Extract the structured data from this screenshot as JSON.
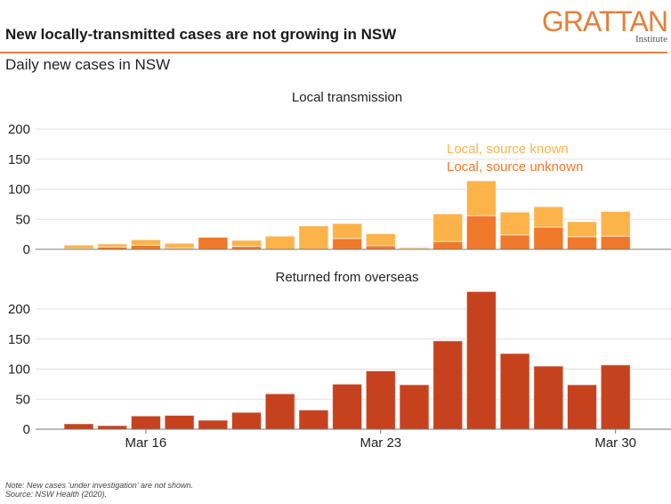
{
  "header": {
    "title": "New locally-transmitted cases are not growing in NSW",
    "subtitle": "Daily new cases in NSW",
    "logo_main": "GRATTAN",
    "logo_sub": "Institute"
  },
  "colors": {
    "accent": "#e67e3a",
    "local_known": "#fbb34a",
    "local_unknown": "#f0782a",
    "overseas": "#c6421f",
    "grid": "#e0e0e0",
    "axis": "#777777"
  },
  "footer": {
    "note": "Note: New cases 'under investigation' are not shown.",
    "source": "Source: NSW Health (2020)."
  },
  "chart_data": [
    {
      "type": "bar",
      "stacked": true,
      "title": "Local transmission",
      "categories": [
        "Mar 14",
        "Mar 15",
        "Mar 16",
        "Mar 17",
        "Mar 18",
        "Mar 19",
        "Mar 20",
        "Mar 21",
        "Mar 22",
        "Mar 23",
        "Mar 24",
        "Mar 25",
        "Mar 26",
        "Mar 27",
        "Mar 28",
        "Mar 29",
        "Mar 30"
      ],
      "series": [
        {
          "name": "Local, source unknown",
          "values": [
            1,
            4,
            7,
            2,
            20,
            5,
            0,
            0,
            18,
            6,
            1,
            13,
            56,
            24,
            37,
            21,
            22
          ]
        },
        {
          "name": "Local, source known",
          "values": [
            6,
            5,
            9,
            8,
            0,
            10,
            22,
            39,
            25,
            20,
            2,
            46,
            58,
            38,
            34,
            25,
            41
          ]
        }
      ],
      "yticks": [
        0,
        50,
        100,
        150,
        200
      ],
      "ylim": [
        0,
        200
      ],
      "xlabel": "",
      "ylabel": "",
      "grid": true,
      "legend": "top-right"
    },
    {
      "type": "bar",
      "title": "Returned from overseas",
      "categories": [
        "Mar 14",
        "Mar 15",
        "Mar 16",
        "Mar 17",
        "Mar 18",
        "Mar 19",
        "Mar 20",
        "Mar 21",
        "Mar 22",
        "Mar 23",
        "Mar 24",
        "Mar 25",
        "Mar 26",
        "Mar 27",
        "Mar 28",
        "Mar 29",
        "Mar 30"
      ],
      "series": [
        {
          "name": "Returned from overseas",
          "values": [
            9,
            6,
            22,
            23,
            15,
            28,
            59,
            32,
            75,
            97,
            74,
            147,
            229,
            126,
            105,
            74,
            107
          ]
        }
      ],
      "yticks": [
        0,
        50,
        100,
        150,
        200
      ],
      "ylim": [
        0,
        230
      ],
      "xticks": [
        "Mar 16",
        "Mar 23",
        "Mar 30"
      ],
      "xlabel": "",
      "ylabel": "",
      "grid": true
    }
  ]
}
